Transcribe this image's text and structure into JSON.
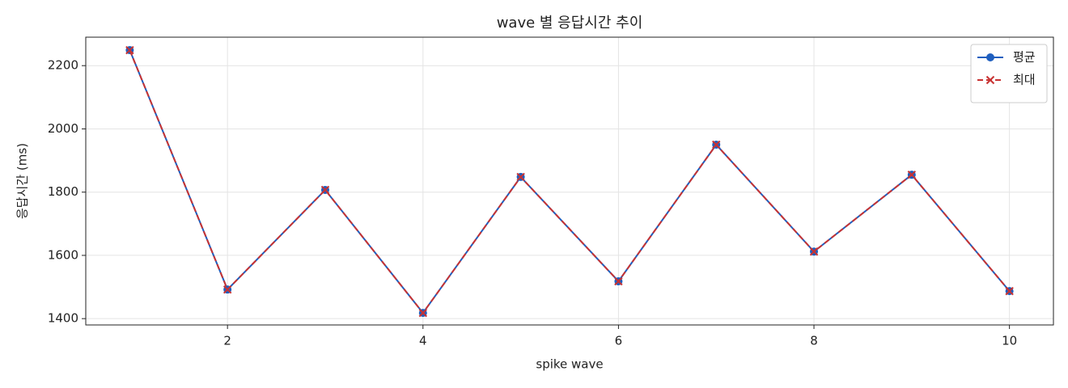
{
  "chart_data": {
    "type": "line",
    "title": "wave 별 응답시간 추이",
    "xlabel": "spike wave",
    "ylabel": "응답시간 (ms)",
    "x": [
      1,
      2,
      3,
      4,
      5,
      6,
      7,
      8,
      9,
      10
    ],
    "series": [
      {
        "name": "평균",
        "color": "#1f5fbf",
        "linestyle": "solid",
        "marker": "circle",
        "values": [
          2249,
          1492,
          1807,
          1418,
          1848,
          1518,
          1950,
          1612,
          1855,
          1487
        ]
      },
      {
        "name": "최대",
        "color": "#c83232",
        "linestyle": "dashed",
        "marker": "x",
        "values": [
          2249,
          1492,
          1807,
          1418,
          1848,
          1518,
          1950,
          1612,
          1855,
          1487
        ]
      }
    ],
    "xlim": [
      0.55,
      10.45
    ],
    "xticks": [
      2,
      4,
      6,
      8,
      10
    ],
    "ylim": [
      1380,
      2290
    ],
    "yticks": [
      1400,
      1600,
      1800,
      2000,
      2200
    ],
    "grid": true,
    "legend": "upper right"
  }
}
